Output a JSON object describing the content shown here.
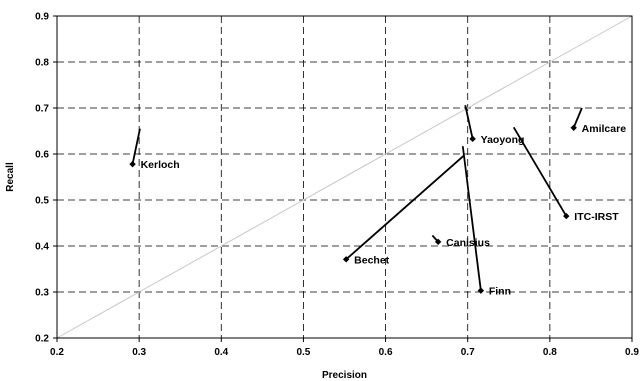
{
  "chart_data": {
    "type": "scatter",
    "xlabel": "Precision",
    "ylabel": "Recall",
    "xlim": [
      0.2,
      0.9
    ],
    "ylim": [
      0.2,
      0.9
    ],
    "x_ticks": [
      "0.2",
      "0.3",
      "0.4",
      "0.5",
      "0.6",
      "0.7",
      "0.8",
      "0.9"
    ],
    "y_ticks": [
      "0.2",
      "0.3",
      "0.4",
      "0.5",
      "0.6",
      "0.7",
      "0.8",
      "0.9"
    ],
    "grid": true,
    "diagonal": true,
    "points": [
      {
        "label": "Kerloch",
        "x": 0.292,
        "y": 0.578,
        "x2": 0.301,
        "y2": 0.655
      },
      {
        "label": "Bechet",
        "x": 0.552,
        "y": 0.371,
        "x2": 0.695,
        "y2": 0.596
      },
      {
        "label": "Canisius",
        "x": 0.664,
        "y": 0.409,
        "x2": 0.657,
        "y2": 0.423
      },
      {
        "label": "Finn",
        "x": 0.716,
        "y": 0.303,
        "x2": 0.694,
        "y2": 0.617
      },
      {
        "label": "Yaoyong",
        "x": 0.706,
        "y": 0.633,
        "x2": 0.697,
        "y2": 0.706
      },
      {
        "label": "ITC-IRST",
        "x": 0.82,
        "y": 0.465,
        "x2": 0.756,
        "y2": 0.658
      },
      {
        "label": "Amilcare",
        "x": 0.829,
        "y": 0.657,
        "x2": 0.839,
        "y2": 0.7
      }
    ]
  }
}
